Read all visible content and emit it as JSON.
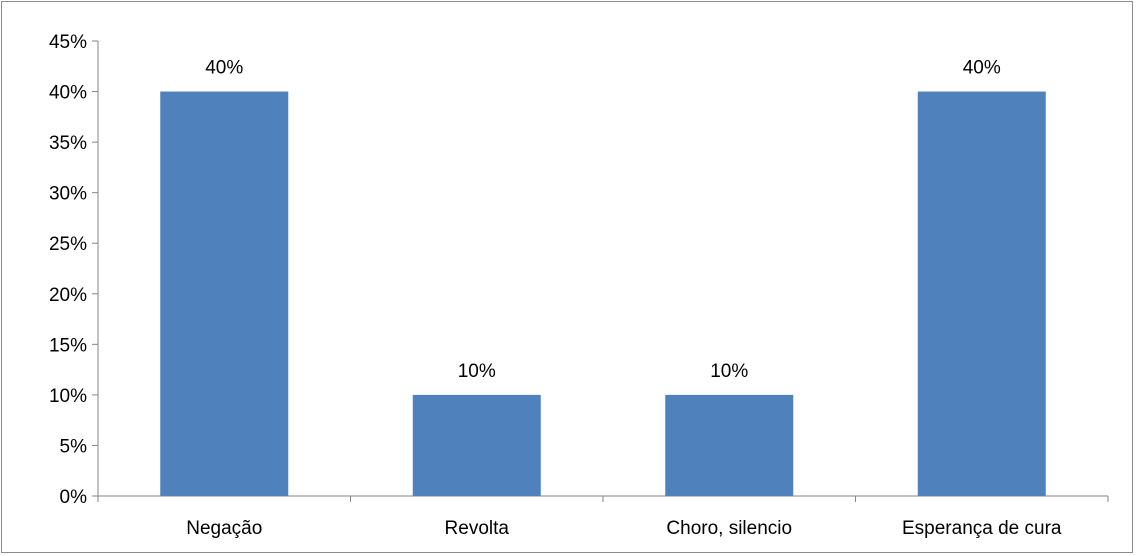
{
  "chart_data": {
    "type": "bar",
    "categories": [
      "Negação",
      "Revolta",
      "Choro, silencio",
      "Esperança de cura"
    ],
    "values": [
      40,
      10,
      10,
      40
    ],
    "data_labels": [
      "40%",
      "10%",
      "10%",
      "40%"
    ],
    "title": "",
    "xlabel": "",
    "ylabel": "",
    "ylim": [
      0,
      45
    ],
    "yticks": [
      0,
      5,
      10,
      15,
      20,
      25,
      30,
      35,
      40,
      45
    ],
    "ytick_labels": [
      "0%",
      "5%",
      "10%",
      "15%",
      "20%",
      "25%",
      "30%",
      "35%",
      "40%",
      "45%"
    ],
    "grid": false,
    "legend": "none",
    "bar_color": "#4F81BD",
    "axis_color": "#868686"
  }
}
